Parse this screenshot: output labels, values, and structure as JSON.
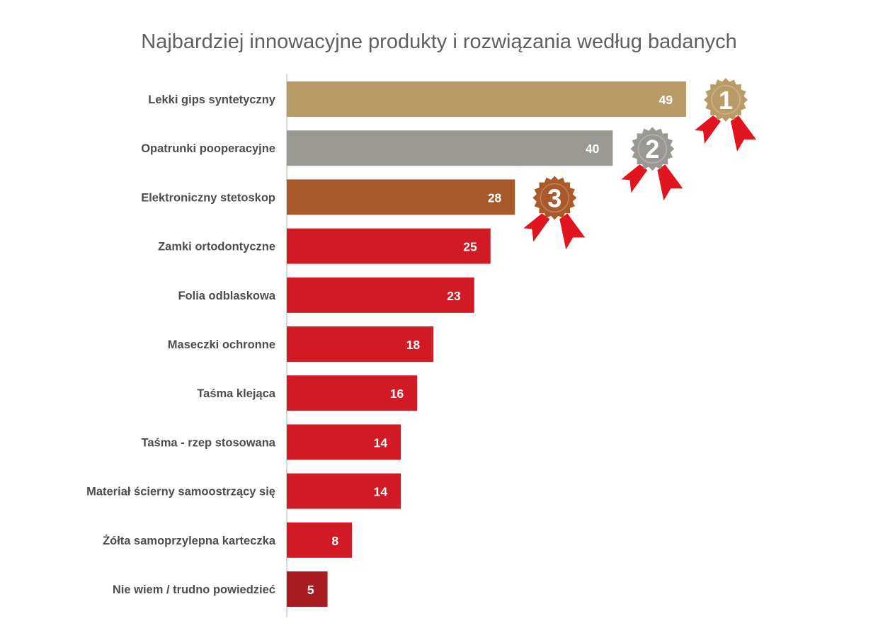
{
  "chart_data": {
    "type": "bar",
    "orientation": "horizontal",
    "title": "Najbardziej innowacyjne produkty i rozwiązania według badanych",
    "xlabel": "",
    "ylabel": "",
    "xlim": [
      0,
      49
    ],
    "grid": false,
    "categories": [
      "Lekki gips syntetyczny",
      "Opatrunki pooperacyjne",
      "Elektroniczny stetoskop",
      "Zamki ortodontyczne",
      "Folia odblaskowa",
      "Maseczki ochronne",
      "Taśma klejąca",
      "Taśma - rzep stosowana",
      "Materiał ścierny samoostrzący się",
      "Żółta samoprzylepna karteczka",
      "Nie wiem / trudno powiedzieć"
    ],
    "values": [
      49,
      40,
      28,
      25,
      23,
      18,
      16,
      14,
      14,
      8,
      5
    ],
    "bar_colors": [
      "#b99b68",
      "#9a9893",
      "#a85a2a",
      "#d21a25",
      "#d21a25",
      "#d21a25",
      "#d21a25",
      "#d21a25",
      "#d21a25",
      "#d21a25",
      "#a91c22"
    ],
    "medals": [
      {
        "rank": "1",
        "label": "1",
        "color": "#b99b68"
      },
      {
        "rank": "2",
        "label": "2",
        "color": "#9a9893"
      },
      {
        "rank": "3",
        "label": "3",
        "color": "#a85a2a"
      }
    ],
    "ribbon_color": "#e0151f"
  }
}
